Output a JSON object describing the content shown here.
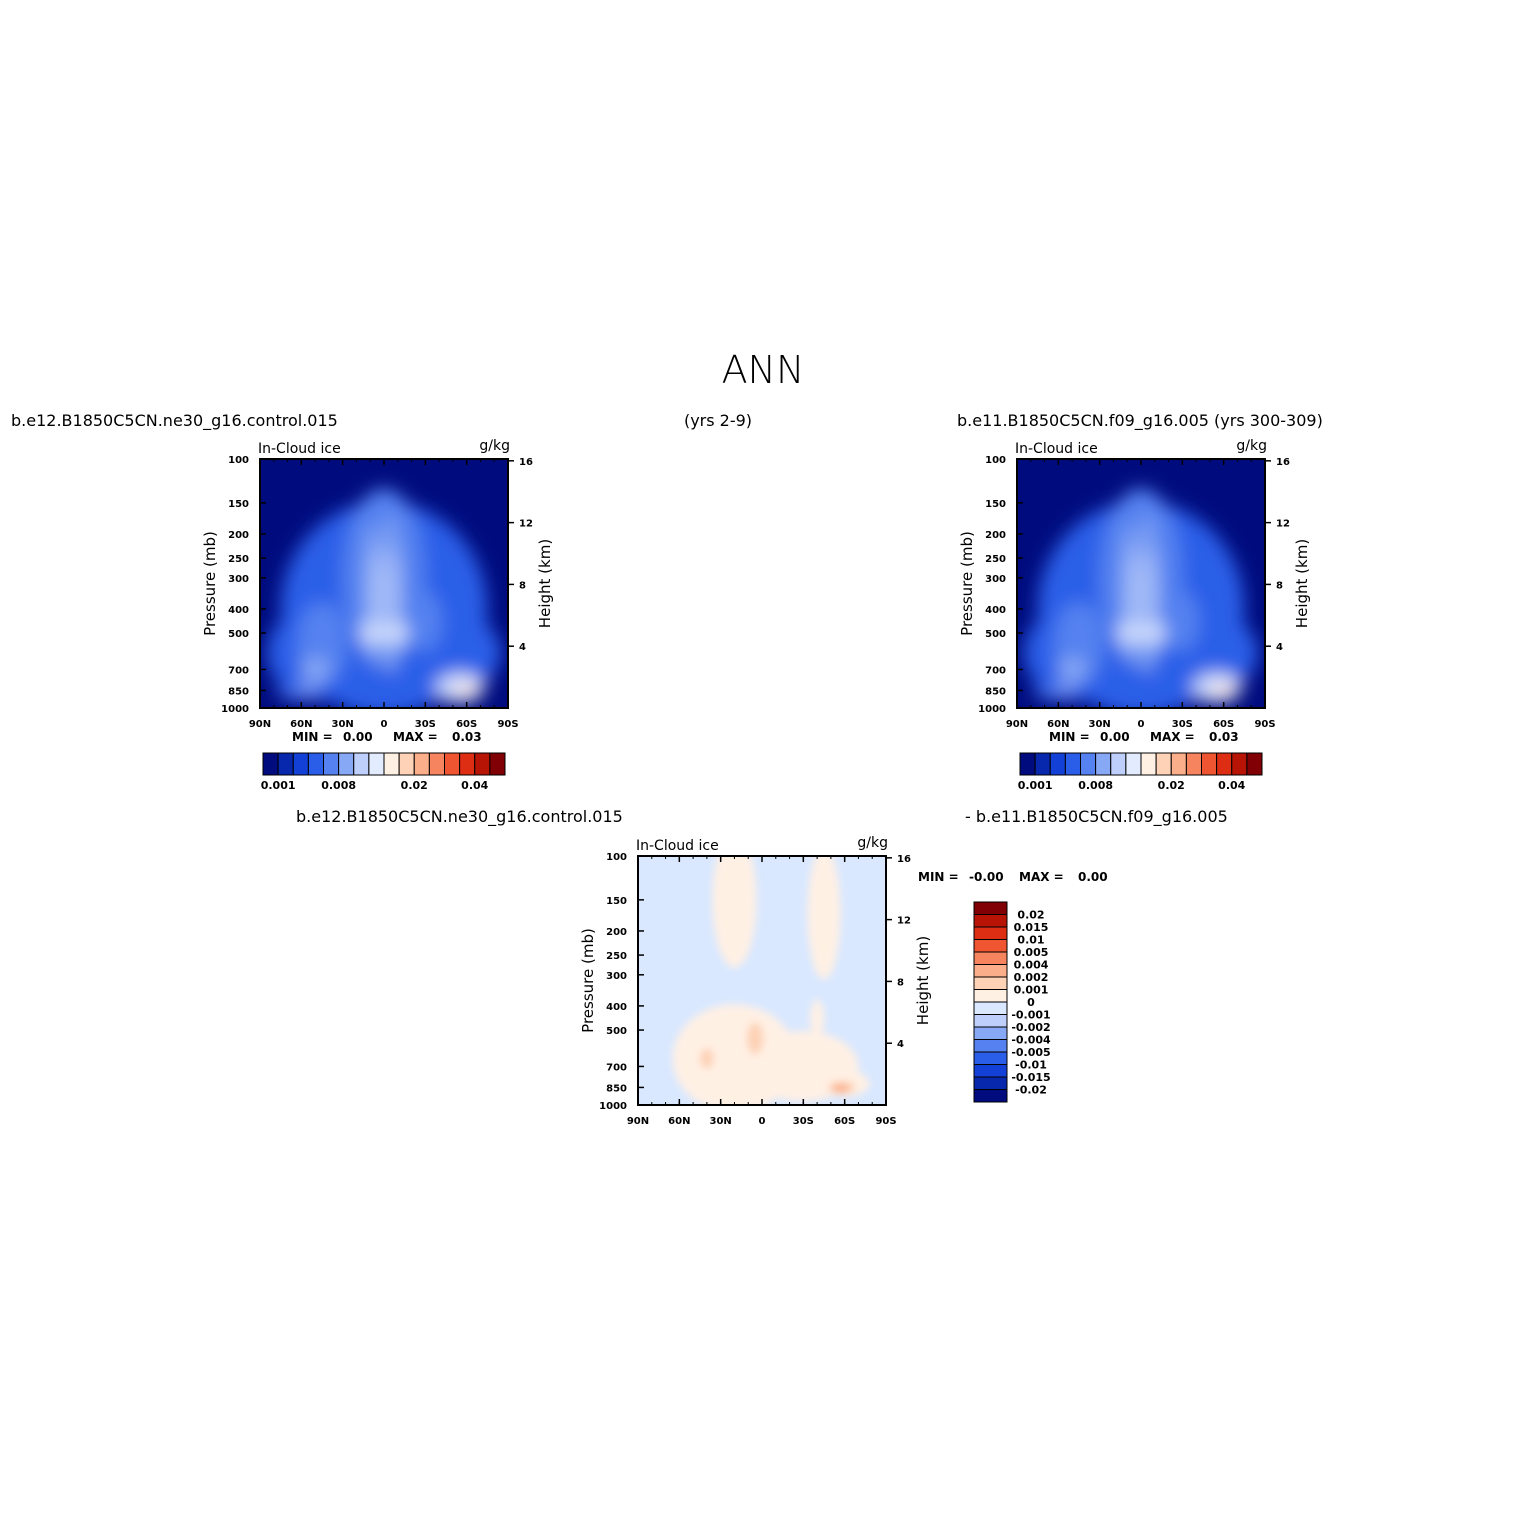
{
  "page": {
    "title": "ANN",
    "top_left_case": "b.e12.B1850C5CN.ne30_g16.control.015",
    "top_middle_years": "(yrs 2-9)",
    "top_right_case": "b.e11.B1850C5CN.f09_g16.005 (yrs 300-309)",
    "bottom_left_case": "b.e12.B1850C5CN.ne30_g16.control.015",
    "bottom_right_case": "- b.e11.B1850C5CN.f09_g16.005"
  },
  "palette": {
    "abs_colors": [
      "#000c7e",
      "#0727ad",
      "#1341d8",
      "#2b5ee8",
      "#5582f0",
      "#87a8f5",
      "#bdcffa",
      "#e3ecff",
      "#fff0e4",
      "#fdd2b6",
      "#faae89",
      "#f6855f",
      "#ef5530",
      "#dd2d12",
      "#b81406",
      "#800005"
    ],
    "diff_colors": [
      "#000c7e",
      "#0727ad",
      "#1341d8",
      "#2b5ee8",
      "#5582f0",
      "#87a8f5",
      "#bdcffa",
      "#d9e8ff",
      "#fff0e4",
      "#fdd2b6",
      "#faae89",
      "#f6855f",
      "#ef5530",
      "#dd2d12",
      "#b81406",
      "#800005"
    ]
  },
  "chart_data": [
    {
      "type": "heatmap",
      "panel": "model",
      "title": "In-Cloud ice",
      "units": "g/kg",
      "ylabel": "Pressure (mb)",
      "ylabel_right": "Height (km)",
      "x_ticks": [
        "90N",
        "60N",
        "30N",
        "0",
        "30S",
        "60S",
        "90S"
      ],
      "x_range": [
        90,
        -90
      ],
      "y_ticks": [
        100,
        150,
        200,
        250,
        300,
        400,
        500,
        700,
        850,
        1000
      ],
      "y_range": [
        1000,
        100
      ],
      "y_scale": "log",
      "height_ticks": [
        16,
        12,
        8,
        4
      ],
      "min_label": "MIN =",
      "min_value": "0.00",
      "max_label": "MAX =",
      "max_value": "0.03",
      "levels": [
        0.001,
        0.002,
        0.004,
        0.006,
        0.008,
        0.01,
        0.012,
        0.015,
        0.018,
        0.02,
        0.025,
        0.03,
        0.035,
        0.04,
        0.05
      ],
      "colorbar_labels": [
        {
          "text": "0.001",
          "index": 0
        },
        {
          "text": "0.008",
          "index": 4
        },
        {
          "text": "0.02",
          "index": 9
        },
        {
          "text": "0.04",
          "index": 13
        }
      ]
    },
    {
      "type": "heatmap",
      "panel": "obs",
      "title": "In-Cloud ice",
      "units": "g/kg",
      "ylabel": "Pressure (mb)",
      "ylabel_right": "Height (km)",
      "x_ticks": [
        "90N",
        "60N",
        "30N",
        "0",
        "30S",
        "60S",
        "90S"
      ],
      "x_range": [
        90,
        -90
      ],
      "y_ticks": [
        100,
        150,
        200,
        250,
        300,
        400,
        500,
        700,
        850,
        1000
      ],
      "y_range": [
        1000,
        100
      ],
      "y_scale": "log",
      "height_ticks": [
        16,
        12,
        8,
        4
      ],
      "min_label": "MIN =",
      "min_value": "0.00",
      "max_label": "MAX =",
      "max_value": "0.03",
      "levels": [
        0.001,
        0.002,
        0.004,
        0.006,
        0.008,
        0.01,
        0.012,
        0.015,
        0.018,
        0.02,
        0.025,
        0.03,
        0.035,
        0.04,
        0.05
      ],
      "colorbar_labels": [
        {
          "text": "0.001",
          "index": 0
        },
        {
          "text": "0.008",
          "index": 4
        },
        {
          "text": "0.02",
          "index": 9
        },
        {
          "text": "0.04",
          "index": 13
        }
      ]
    },
    {
      "type": "heatmap",
      "panel": "difference",
      "title": "In-Cloud ice",
      "units": "g/kg",
      "ylabel": "Pressure (mb)",
      "ylabel_right": "Height (km)",
      "x_ticks": [
        "90N",
        "60N",
        "30N",
        "0",
        "30S",
        "60S",
        "90S"
      ],
      "x_range": [
        90,
        -90
      ],
      "y_ticks": [
        100,
        150,
        200,
        250,
        300,
        400,
        500,
        700,
        850,
        1000
      ],
      "y_range": [
        1000,
        100
      ],
      "y_scale": "log",
      "height_ticks": [
        16,
        12,
        8,
        4
      ],
      "min_label": "MIN =",
      "min_value": "-0.00",
      "max_label": "MAX =",
      "max_value": "0.00",
      "levels": [
        -0.02,
        -0.015,
        -0.01,
        -0.005,
        -0.004,
        -0.002,
        -0.001,
        0,
        0.001,
        0.002,
        0.004,
        0.005,
        0.01,
        0.015,
        0.02
      ],
      "colorbar_labels": [
        "0.02",
        "0.015",
        "0.01",
        "0.005",
        "0.004",
        "0.002",
        "0.001",
        "0",
        "-0.001",
        "-0.002",
        "-0.004",
        "-0.005",
        "-0.01",
        "-0.015",
        "-0.02"
      ]
    }
  ]
}
